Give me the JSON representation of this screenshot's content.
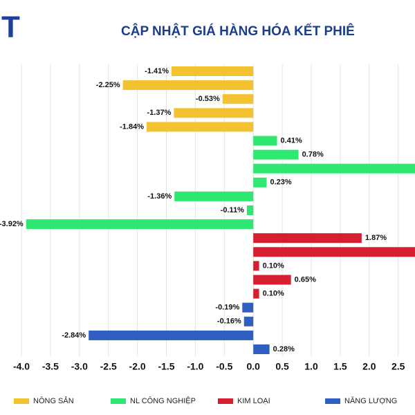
{
  "logo": "T",
  "chart_data": {
    "type": "bar",
    "orientation": "horizontal",
    "title": "CẬP NHẬT GIÁ HÀNG HÓA KẾT PHIÊ",
    "xlim": [
      -4.37,
      2.79
    ],
    "xticks": [
      {
        "value": -4,
        "label": "-4.0"
      },
      {
        "value": -3.5,
        "label": "-3.5"
      },
      {
        "value": -3,
        "label": "-3.0"
      },
      {
        "value": -2.5,
        "label": "-2.5"
      },
      {
        "value": -2,
        "label": "-2.0"
      },
      {
        "value": -1.5,
        "label": "-1.5"
      },
      {
        "value": -1,
        "label": "-1.0"
      },
      {
        "value": -0.5,
        "label": "-0.5"
      },
      {
        "value": 0,
        "label": "0.0"
      },
      {
        "value": 0.5,
        "label": "0.5"
      },
      {
        "value": 1,
        "label": "1.0"
      },
      {
        "value": 1.5,
        "label": "1.5"
      },
      {
        "value": 2,
        "label": "2.0"
      },
      {
        "value": 2.5,
        "label": "2.5"
      }
    ],
    "grid": true,
    "series": [
      {
        "name": "NÔNG SẢN",
        "color": "#f2c230",
        "values": [
          -1.41,
          -2.25,
          -0.53,
          -1.37,
          -1.84
        ],
        "value_labels": [
          "-1.41%",
          "-2.25%",
          "-0.53%",
          "-1.37%",
          "-1.84%"
        ]
      },
      {
        "name": "NL CÔNG NGHIỆP",
        "color": "#2ee872",
        "values": [
          0.41,
          0.78,
          3.0,
          0.23,
          -1.36,
          -0.11,
          -3.92
        ],
        "value_labels": [
          "0.41%",
          "0.78%",
          null,
          "0.23%",
          "-1.36%",
          "-0.11%",
          "-3.92%"
        ]
      },
      {
        "name": "KIM LOẠI",
        "color": "#d41f30",
        "values": [
          1.87,
          3.0,
          0.1,
          0.65,
          0.1
        ],
        "value_labels": [
          "1.87%",
          null,
          "0.10%",
          "0.65%",
          "0.10%"
        ]
      },
      {
        "name": "NĂNG LƯỢNG",
        "color": "#2f5fc0",
        "values": [
          -0.19,
          -0.16,
          -2.84,
          0.28
        ],
        "value_labels": [
          "-0.19%",
          "-0.16%",
          "-2.84%",
          "0.28%"
        ]
      }
    ]
  }
}
